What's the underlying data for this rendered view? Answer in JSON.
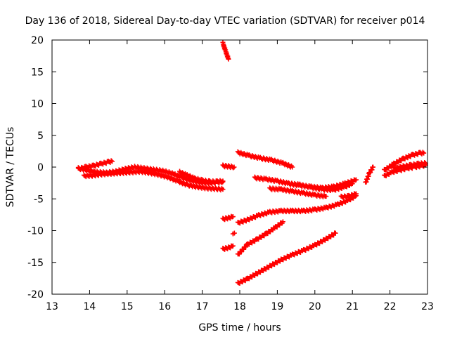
{
  "chart_data": {
    "type": "scatter",
    "title": "Day 136 of 2018, Sidereal Day-to-day VTEC variation (SDTVAR) for receiver p014",
    "xlabel": "GPS time / hours",
    "ylabel": "SDTVAR / TECUs",
    "xlim": [
      13,
      23
    ],
    "ylim": [
      -20,
      20
    ],
    "xticks": [
      "13",
      "14",
      "15",
      "16",
      "17",
      "18",
      "19",
      "20",
      "21",
      "22",
      "23"
    ],
    "yticks": [
      "20",
      "15",
      "10",
      "5",
      "0",
      "-5",
      "-10",
      "-15",
      "-20"
    ],
    "grid": false,
    "legend": "none",
    "marker": "+",
    "color": "#ff0000",
    "series": [
      {
        "x": [
          13.7,
          13.9,
          14.1,
          14.3,
          14.5,
          14.6
        ],
        "y": [
          -0.3,
          0.0,
          0.2,
          0.5,
          0.8,
          0.9
        ]
      },
      {
        "x": [
          13.7,
          13.95,
          14.2,
          14.45,
          14.7,
          14.95,
          15.2,
          15.45,
          15.7,
          15.95,
          16.2,
          16.45,
          16.7,
          16.95,
          17.2,
          17.4,
          17.55
        ],
        "y": [
          -0.2,
          -0.5,
          -0.8,
          -0.9,
          -0.7,
          -0.3,
          0.0,
          -0.2,
          -0.4,
          -0.6,
          -1.0,
          -1.6,
          -2.1,
          -2.4,
          -2.5,
          -2.4,
          -2.3
        ]
      },
      {
        "x": [
          13.85,
          14.1,
          14.35,
          14.6,
          14.85,
          15.1,
          15.35,
          15.6,
          15.85,
          16.1,
          16.35,
          16.6,
          16.85,
          17.1,
          17.35,
          17.55
        ],
        "y": [
          -1.4,
          -1.3,
          -1.1,
          -1.0,
          -0.9,
          -0.8,
          -0.7,
          -0.9,
          -1.2,
          -1.6,
          -2.2,
          -2.8,
          -3.1,
          -3.3,
          -3.4,
          -3.5
        ]
      },
      {
        "x": [
          16.4,
          16.6,
          16.8,
          17.0,
          17.2,
          17.4,
          17.55
        ],
        "y": [
          -0.8,
          -1.3,
          -1.8,
          -2.1,
          -2.3,
          -2.3,
          -2.2
        ]
      },
      {
        "x": [
          17.55,
          17.62,
          17.7
        ],
        "y": [
          19.5,
          18.3,
          17.0
        ]
      },
      {
        "x": [
          17.55,
          17.7,
          17.85
        ],
        "y": [
          0.2,
          0.1,
          0.0
        ]
      },
      {
        "x": [
          17.55,
          17.7,
          17.82
        ],
        "y": [
          -8.2,
          -8.0,
          -7.8
        ]
      },
      {
        "x": [
          17.82
        ],
        "y": [
          -10.5
        ]
      },
      {
        "x": [
          17.55,
          17.7,
          17.82
        ],
        "y": [
          -12.9,
          -12.7,
          -12.4
        ]
      },
      {
        "x": [
          17.95,
          18.25,
          18.55,
          18.85,
          19.15,
          19.4
        ],
        "y": [
          2.3,
          1.8,
          1.4,
          1.1,
          0.6,
          0.0
        ]
      },
      {
        "x": [
          17.95,
          18.2,
          18.5,
          18.8,
          19.1,
          19.4,
          19.7,
          20.0,
          20.3,
          20.6,
          20.9,
          21.1
        ],
        "y": [
          -8.8,
          -8.3,
          -7.6,
          -7.1,
          -6.9,
          -6.9,
          -6.9,
          -6.7,
          -6.4,
          -5.9,
          -5.2,
          -4.5
        ]
      },
      {
        "x": [
          17.95,
          18.2,
          18.45,
          18.7,
          18.95,
          19.15
        ],
        "y": [
          -13.8,
          -12.2,
          -11.4,
          -10.5,
          -9.5,
          -8.6
        ]
      },
      {
        "x": [
          17.95,
          18.2,
          18.5,
          18.8,
          19.1,
          19.4,
          19.7,
          20.0,
          20.3,
          20.55
        ],
        "y": [
          -18.3,
          -17.6,
          -16.6,
          -15.6,
          -14.6,
          -13.8,
          -13.1,
          -12.3,
          -11.3,
          -10.4
        ]
      },
      {
        "x": [
          18.4,
          18.7,
          19.0,
          19.3,
          19.6,
          19.9,
          20.2,
          20.5,
          20.8,
          21.1
        ],
        "y": [
          -1.7,
          -1.9,
          -2.2,
          -2.6,
          -2.9,
          -3.1,
          -3.3,
          -3.1,
          -2.6,
          -2.0
        ]
      },
      {
        "x": [
          18.8,
          19.1,
          19.4,
          19.7,
          20.0,
          20.3
        ],
        "y": [
          -3.4,
          -3.5,
          -3.8,
          -4.1,
          -4.4,
          -4.6
        ]
      },
      {
        "x": [
          19.3,
          19.6,
          19.9,
          20.2,
          20.5,
          20.8,
          21.0
        ],
        "y": [
          -2.6,
          -2.8,
          -3.2,
          -3.5,
          -3.6,
          -3.1,
          -2.6
        ]
      },
      {
        "x": [
          20.7,
          20.9,
          21.1
        ],
        "y": [
          -4.7,
          -4.6,
          -4.2
        ]
      },
      {
        "x": [
          21.35,
          21.45,
          21.55
        ],
        "y": [
          -2.5,
          -1.0,
          0.0
        ]
      },
      {
        "x": [
          21.85,
          22.1,
          22.35,
          22.6,
          22.8,
          22.9
        ],
        "y": [
          -0.5,
          0.5,
          1.3,
          1.9,
          2.2,
          2.2
        ]
      },
      {
        "x": [
          21.85,
          22.05,
          22.25,
          22.45,
          22.65,
          22.85,
          22.95
        ],
        "y": [
          -1.4,
          -0.8,
          -0.5,
          -0.2,
          0.0,
          0.2,
          0.3
        ]
      },
      {
        "x": [
          22.1,
          22.35,
          22.55,
          22.75,
          22.95
        ],
        "y": [
          -0.2,
          0.1,
          0.3,
          0.5,
          0.6
        ]
      }
    ]
  }
}
